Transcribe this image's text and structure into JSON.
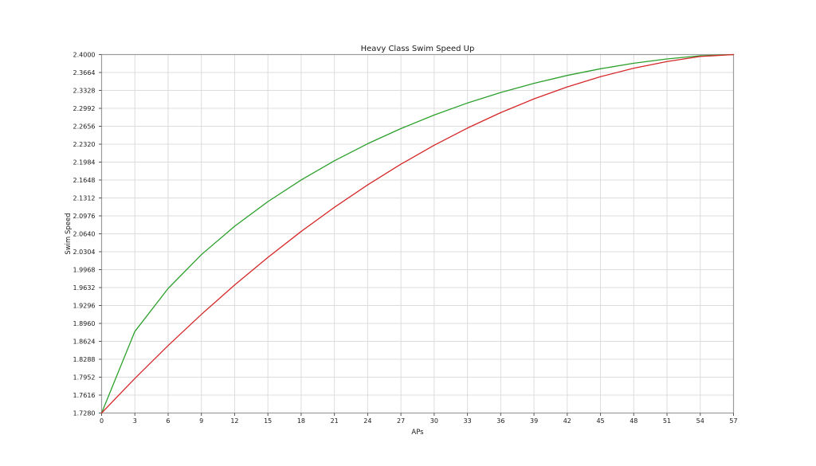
{
  "chart_data": {
    "type": "line",
    "title": "Heavy Class Swim Speed Up",
    "xlabel": "APs",
    "ylabel": "Swim Speed",
    "xlim": [
      0,
      57
    ],
    "ylim": [
      1.728,
      2.4
    ],
    "grid": true,
    "legend": "none",
    "x": [
      0,
      3,
      6,
      9,
      12,
      15,
      18,
      21,
      24,
      27,
      30,
      33,
      36,
      39,
      42,
      45,
      48,
      51,
      54,
      57
    ],
    "x_tick_labels": [
      "0",
      "3",
      "6",
      "9",
      "12",
      "15",
      "18",
      "21",
      "24",
      "27",
      "30",
      "33",
      "36",
      "39",
      "42",
      "45",
      "48",
      "51",
      "54",
      "57"
    ],
    "y_ticks": [
      1.728,
      1.7616,
      1.7952,
      1.8288,
      1.8624,
      1.896,
      1.9296,
      1.9632,
      1.9968,
      2.0304,
      2.064,
      2.0976,
      2.1312,
      2.1648,
      2.1984,
      2.232,
      2.2656,
      2.2992,
      2.3328,
      2.3664,
      2.4
    ],
    "y_tick_labels": [
      "1.7280",
      "1.7616",
      "1.7952",
      "1.8288",
      "1.8624",
      "1.8960",
      "1.9296",
      "1.9632",
      "1.9968",
      "2.0304",
      "2.0640",
      "2.0976",
      "2.1312",
      "2.1648",
      "2.1984",
      "2.2320",
      "2.2656",
      "2.2992",
      "2.3328",
      "2.3664",
      "2.4000"
    ],
    "series": [
      {
        "name": "green",
        "color": "#2ca02c",
        "values": [
          1.728,
          1.881,
          1.9615,
          2.0249,
          2.0782,
          2.1243,
          2.1649,
          2.2009,
          2.2329,
          2.2613,
          2.2867,
          2.3092,
          2.3289,
          2.3461,
          2.3609,
          2.3734,
          2.3837,
          2.3918,
          2.3977,
          2.4
        ]
      },
      {
        "name": "red",
        "color": "#d62728",
        "values": [
          1.728,
          1.7929,
          1.8545,
          1.9129,
          1.968,
          2.0198,
          2.0684,
          2.1137,
          2.1557,
          2.1945,
          2.23,
          2.2622,
          2.2912,
          2.3169,
          2.3393,
          2.3585,
          2.3744,
          2.387,
          2.3964,
          2.4
        ]
      }
    ]
  },
  "colors": {
    "background": "#ffffff",
    "grid": "#dcdcdc",
    "spine": "#9a9a9a",
    "tick": "#555555",
    "text": "#1a1a1a"
  }
}
